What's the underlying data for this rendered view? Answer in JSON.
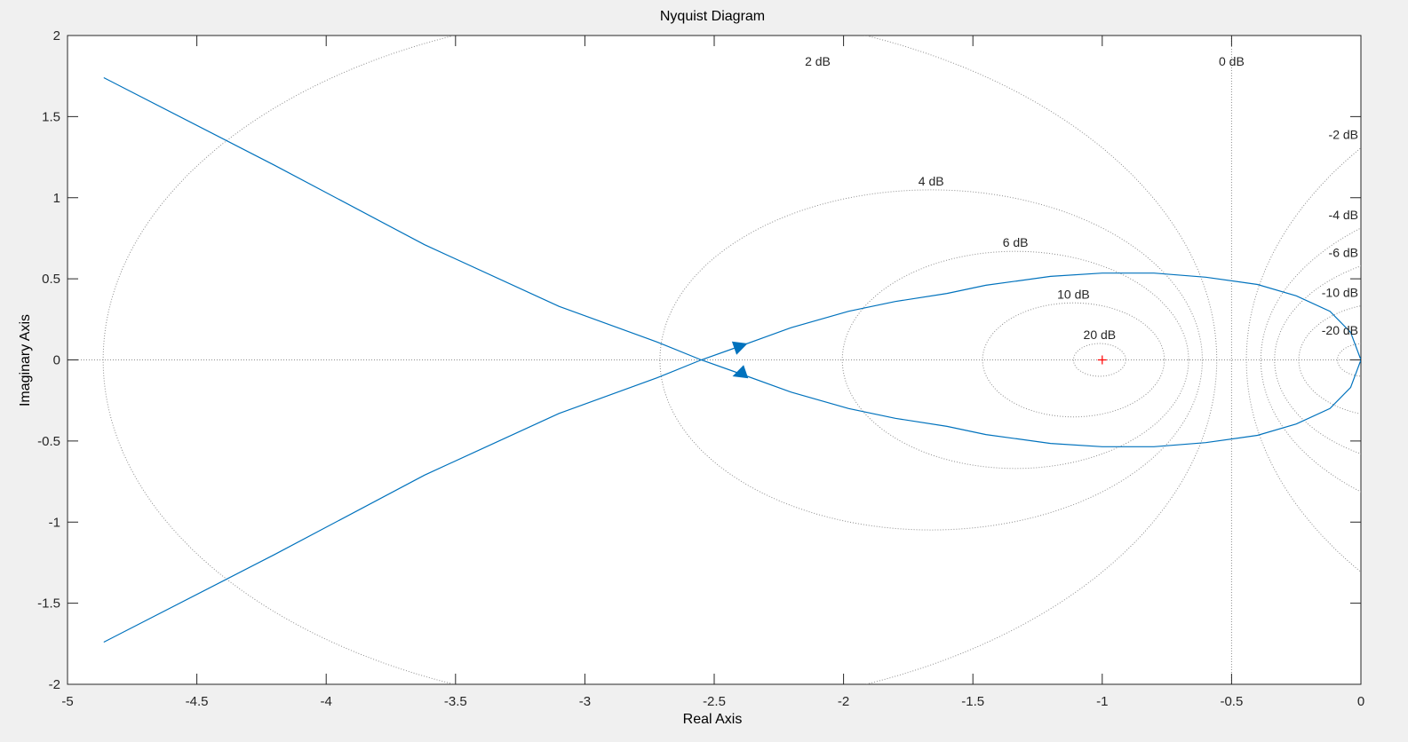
{
  "chart_data": {
    "type": "line",
    "title": "Nyquist Diagram",
    "xlabel": "Real Axis",
    "ylabel": "Imaginary Axis",
    "xlim": [
      -5,
      0
    ],
    "ylim": [
      -2,
      2
    ],
    "xticks": [
      -5,
      -4.5,
      -4,
      -3.5,
      -3,
      -2.5,
      -2,
      -1.5,
      -1,
      -0.5,
      0
    ],
    "yticks": [
      -2,
      -1.5,
      -1,
      -0.5,
      0,
      0.5,
      1,
      1.5,
      2
    ],
    "grid": "M-circles (dB)",
    "m_circles_db": [
      {
        "db": 2,
        "label": "2 dB"
      },
      {
        "db": 4,
        "label": "4 dB"
      },
      {
        "db": 6,
        "label": "6 dB"
      },
      {
        "db": 10,
        "label": "10 dB"
      },
      {
        "db": 20,
        "label": "20 dB"
      },
      {
        "db": -2,
        "label": "-2 dB"
      },
      {
        "db": -4,
        "label": "-4 dB"
      },
      {
        "db": -6,
        "label": "-6 dB"
      },
      {
        "db": -10,
        "label": "-10 dB"
      },
      {
        "db": -20,
        "label": "-20 dB"
      }
    ],
    "zero_db_label": "0 dB",
    "critical_point": [
      -1,
      0
    ],
    "series": [
      {
        "color": "#0072bd",
        "points": [
          [
            -4.86,
            1.74
          ],
          [
            -4.2,
            1.2
          ],
          [
            -3.62,
            0.71
          ],
          [
            -3.1,
            0.33
          ],
          [
            -2.72,
            0.11
          ],
          [
            -2.55,
            0.0
          ],
          [
            -2.4,
            -0.085
          ],
          [
            -2.2,
            -0.2
          ],
          [
            -1.98,
            -0.3
          ],
          [
            -1.8,
            -0.36
          ],
          [
            -1.6,
            -0.41
          ],
          [
            -1.45,
            -0.46
          ],
          [
            -1.2,
            -0.515
          ],
          [
            -1.0,
            -0.535
          ],
          [
            -0.8,
            -0.535
          ],
          [
            -0.6,
            -0.51
          ],
          [
            -0.4,
            -0.465
          ],
          [
            -0.25,
            -0.395
          ],
          [
            -0.12,
            -0.3
          ],
          [
            -0.04,
            -0.17
          ],
          [
            0.0,
            0.0
          ],
          [
            -0.04,
            0.17
          ],
          [
            -0.12,
            0.3
          ],
          [
            -0.25,
            0.395
          ],
          [
            -0.4,
            0.465
          ],
          [
            -0.6,
            0.51
          ],
          [
            -0.8,
            0.535
          ],
          [
            -1.0,
            0.535
          ],
          [
            -1.2,
            0.515
          ],
          [
            -1.45,
            0.46
          ],
          [
            -1.6,
            0.41
          ],
          [
            -1.8,
            0.36
          ],
          [
            -1.98,
            0.3
          ],
          [
            -2.2,
            0.2
          ],
          [
            -2.4,
            0.085
          ],
          [
            -2.55,
            0.0
          ],
          [
            -2.72,
            -0.11
          ],
          [
            -3.1,
            -0.33
          ],
          [
            -3.62,
            -0.71
          ],
          [
            -4.2,
            -1.2
          ],
          [
            -4.86,
            -1.74
          ]
        ]
      }
    ],
    "arrows": [
      {
        "at": [
          -2.4,
          0.085
        ],
        "direction": "up-right"
      },
      {
        "at": [
          -2.4,
          -0.085
        ],
        "direction": "down-left"
      }
    ]
  }
}
